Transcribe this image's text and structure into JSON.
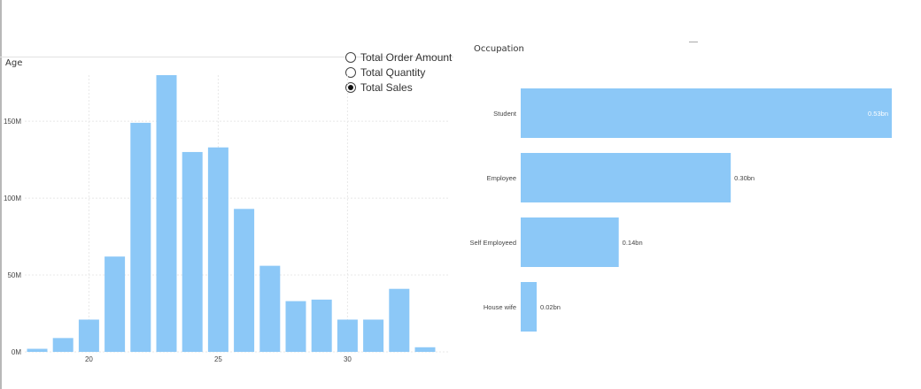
{
  "colors": {
    "bar": "#8cc8f7",
    "grid": "#e8e8e8",
    "text": "#444444"
  },
  "slicer": {
    "options": [
      {
        "label": "Total Order Amount",
        "selected": false
      },
      {
        "label": "Total Quantity",
        "selected": false
      },
      {
        "label": "Total Sales",
        "selected": true
      }
    ]
  },
  "chart_data": [
    {
      "type": "bar",
      "title": "Age",
      "x": [
        18,
        19,
        20,
        21,
        22,
        23,
        24,
        25,
        26,
        27,
        28,
        29,
        30,
        31,
        32,
        33
      ],
      "values": [
        2,
        9,
        21,
        62,
        149,
        180,
        130,
        133,
        93,
        56,
        33,
        34,
        21,
        21,
        41,
        3
      ],
      "value_unit": "M",
      "ylim": [
        0,
        180
      ],
      "yticks": [
        {
          "value": 0,
          "label": "0M"
        },
        {
          "value": 50,
          "label": "50M"
        },
        {
          "value": 100,
          "label": "100M"
        },
        {
          "value": 150,
          "label": "150M"
        }
      ],
      "xticks": [
        {
          "value": 20,
          "label": "20"
        },
        {
          "value": 25,
          "label": "25"
        },
        {
          "value": 30,
          "label": "30"
        }
      ],
      "grid": true
    },
    {
      "type": "bar",
      "orientation": "horizontal",
      "title": "Occupation",
      "categories": [
        "Student",
        "Employee",
        "Self Employeed",
        "House wife"
      ],
      "values": [
        0.53,
        0.3,
        0.14,
        0.02
      ],
      "value_unit": "bn",
      "data_labels": [
        "0.53bn",
        "0.30bn",
        "0.14bn",
        "0.02bn"
      ],
      "grid": false
    }
  ]
}
